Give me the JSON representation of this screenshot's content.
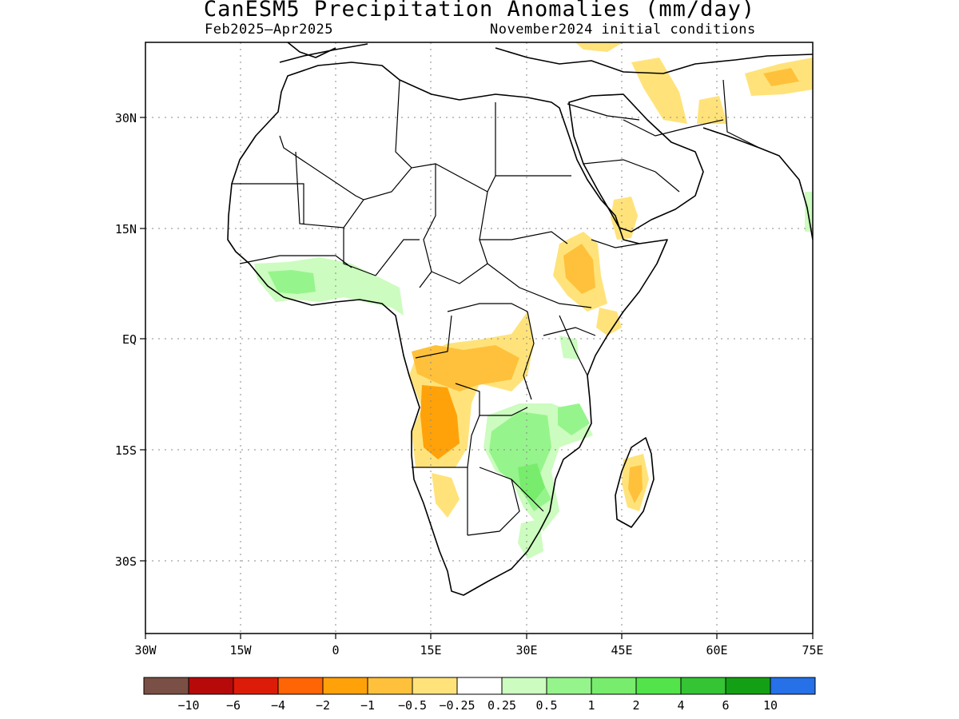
{
  "title": "CanESM5 Precipitation Anomalies (mm/day)",
  "subtitle_left": "Feb2025–Apr2025",
  "subtitle_right": "November2024 initial conditions",
  "map": {
    "lat_labels": [
      "30N",
      "15N",
      "EQ",
      "15S",
      "30S"
    ],
    "lon_labels": [
      "30W",
      "15W",
      "0",
      "15E",
      "30E",
      "45E",
      "60E",
      "75E"
    ],
    "lon_range": [
      -30,
      75
    ],
    "lat_range": [
      -40,
      41
    ],
    "grid": "dotted",
    "anomaly_regions": [
      {
        "region": "Angola / southern Congo",
        "category": "-1 to -2"
      },
      {
        "region": "Central Congo basin",
        "category": "-0.5 to -1"
      },
      {
        "region": "South Sudan / Ethiopia",
        "category": "-0.5 to -1"
      },
      {
        "region": "Yemen / Red Sea",
        "category": "-0.25 to -1"
      },
      {
        "region": "Madagascar",
        "category": "-1 to -2"
      },
      {
        "region": "Zambia / Zimbabwe / Mozambique",
        "category": "0.5 to 2"
      },
      {
        "region": "Guinea coast",
        "category": "0.25 to 1"
      },
      {
        "region": "Arabia / Iran",
        "category": "-0.25 to -0.5"
      }
    ]
  },
  "colorbar": {
    "labels": [
      "−10",
      "−6",
      "−4",
      "−2",
      "−1",
      "−0.5",
      "−0.25",
      "0.25",
      "0.5",
      "1",
      "2",
      "4",
      "6",
      "10"
    ],
    "colors": [
      "#7a4f45",
      "#b60a0a",
      "#dc1c08",
      "#ff6405",
      "#ffa20a",
      "#ffc13b",
      "#ffe37a",
      "#ffffff",
      "#ccfcbf",
      "#96f48c",
      "#78ec6c",
      "#52e44a",
      "#34c434",
      "#14a014",
      "#2670e8"
    ]
  }
}
